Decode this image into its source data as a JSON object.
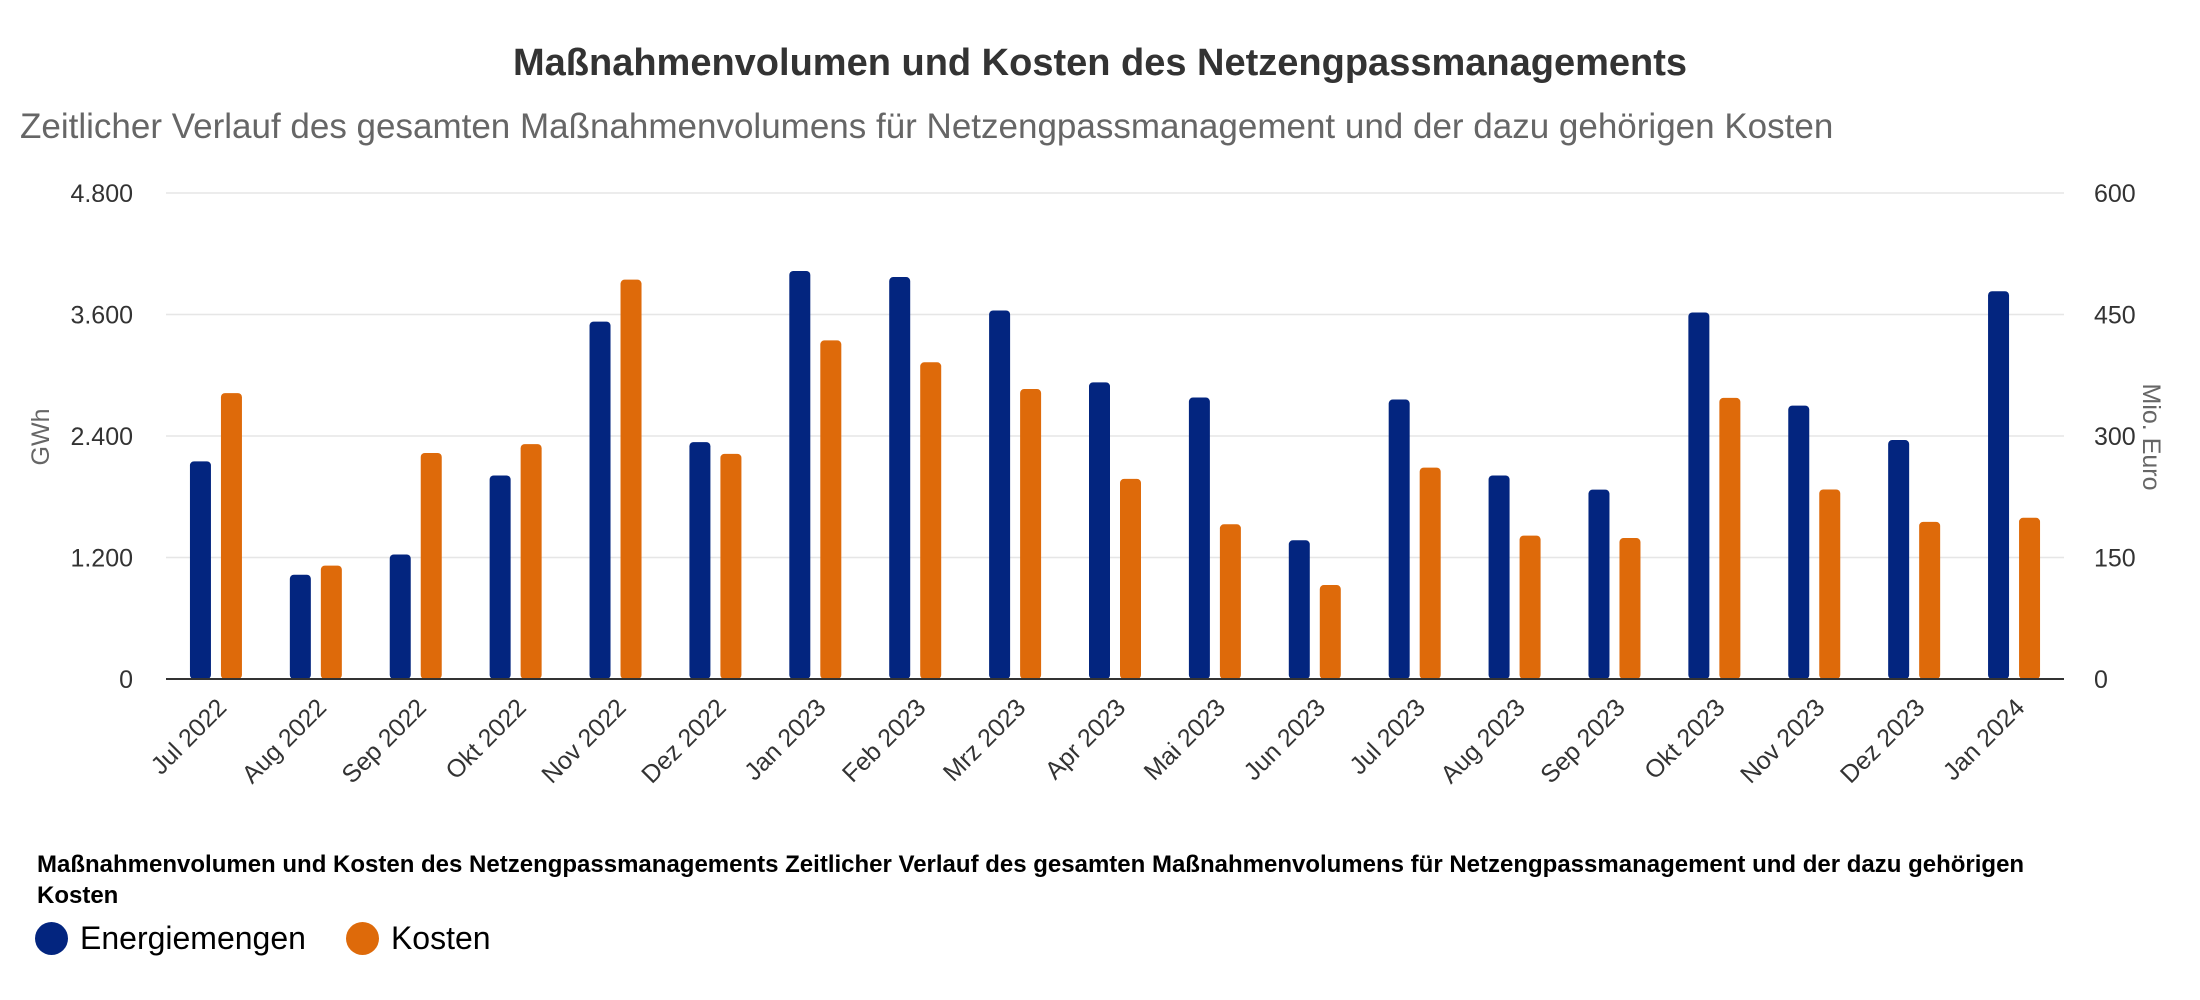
{
  "chart_data": {
    "type": "bar",
    "title": "Maßnahmenvolumen und Kosten des Netzengpassmanagements",
    "subtitle": "Zeitlicher Verlauf des gesamten Maßnahmenvolumens für Netzengpassmanagement und der dazu gehörigen Kosten",
    "footer_title": "Maßnahmenvolumen und Kosten des Netzengpassmanagements Zeitlicher Verlauf des gesamten Maßnahmenvolumens für Netzengpassmanagement und der dazu gehörigen Kosten",
    "categories": [
      "Jul 2022",
      "Aug 2022",
      "Sep 2022",
      "Okt 2022",
      "Nov 2022",
      "Dez 2022",
      "Jan 2023",
      "Feb 2023",
      "Mrz 2023",
      "Apr 2023",
      "Mai 2023",
      "Jun 2023",
      "Jul 2023",
      "Aug 2023",
      "Sep 2023",
      "Okt 2023",
      "Nov 2023",
      "Dez 2023",
      "Jan 2024"
    ],
    "ylabel_left": "GWh",
    "ylabel_right": "Mio. Euro",
    "ylim_left": [
      0,
      4800
    ],
    "ylim_right": [
      0,
      600
    ],
    "yticks_left": [
      "0",
      "1.200",
      "2.400",
      "3.600",
      "4.800"
    ],
    "yticks_right": [
      "0",
      "150",
      "300",
      "450",
      "600"
    ],
    "grid": true,
    "legend_position": "bottom-left",
    "series": [
      {
        "name": "Energiemengen",
        "axis": "left",
        "color": "#03257f",
        "values": [
          2150,
          1030,
          1230,
          2010,
          3530,
          2340,
          4030,
          3970,
          3640,
          2930,
          2780,
          1370,
          2760,
          2010,
          1870,
          3620,
          2700,
          2360,
          3830
        ]
      },
      {
        "name": "Kosten",
        "axis": "right",
        "color": "#de6a0a",
        "values": [
          353,
          140,
          279,
          290,
          493,
          278,
          418,
          391,
          358,
          247,
          191,
          116,
          261,
          177,
          174,
          347,
          234,
          194,
          199
        ]
      }
    ]
  }
}
